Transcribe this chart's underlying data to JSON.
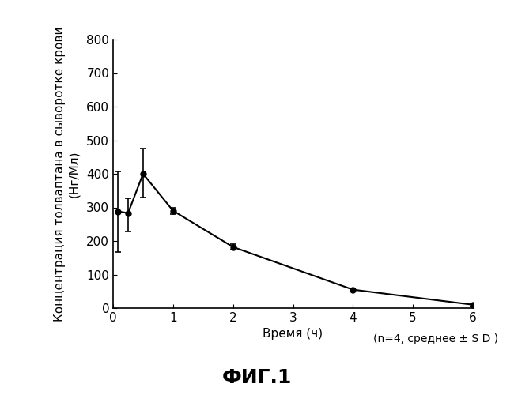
{
  "x": [
    0.083,
    0.25,
    0.5,
    1.0,
    2.0,
    4.0,
    6.0
  ],
  "y": [
    288,
    283,
    400,
    290,
    182,
    55,
    10
  ],
  "yerr_upper": [
    120,
    45,
    75,
    10,
    8,
    5,
    5
  ],
  "yerr_lower": [
    120,
    55,
    70,
    10,
    8,
    5,
    5
  ],
  "xlabel": "Время (ч)",
  "ylabel_line1": "Концентрация толваптана в сыворотке крови",
  "ylabel_line2": "(Нг/Мл)",
  "annotation": "(n=4, среднее ± S D )",
  "figure_label": "ФИГ.1",
  "xlim": [
    0,
    6
  ],
  "ylim": [
    0,
    800
  ],
  "xticks": [
    0,
    1,
    2,
    3,
    4,
    5,
    6
  ],
  "yticks": [
    0,
    100,
    200,
    300,
    400,
    500,
    600,
    700,
    800
  ],
  "line_color": "#000000",
  "marker_color": "#000000",
  "bg_color": "#ffffff",
  "label_fontsize": 11,
  "tick_fontsize": 11,
  "annotation_fontsize": 10,
  "figure_label_fontsize": 18
}
